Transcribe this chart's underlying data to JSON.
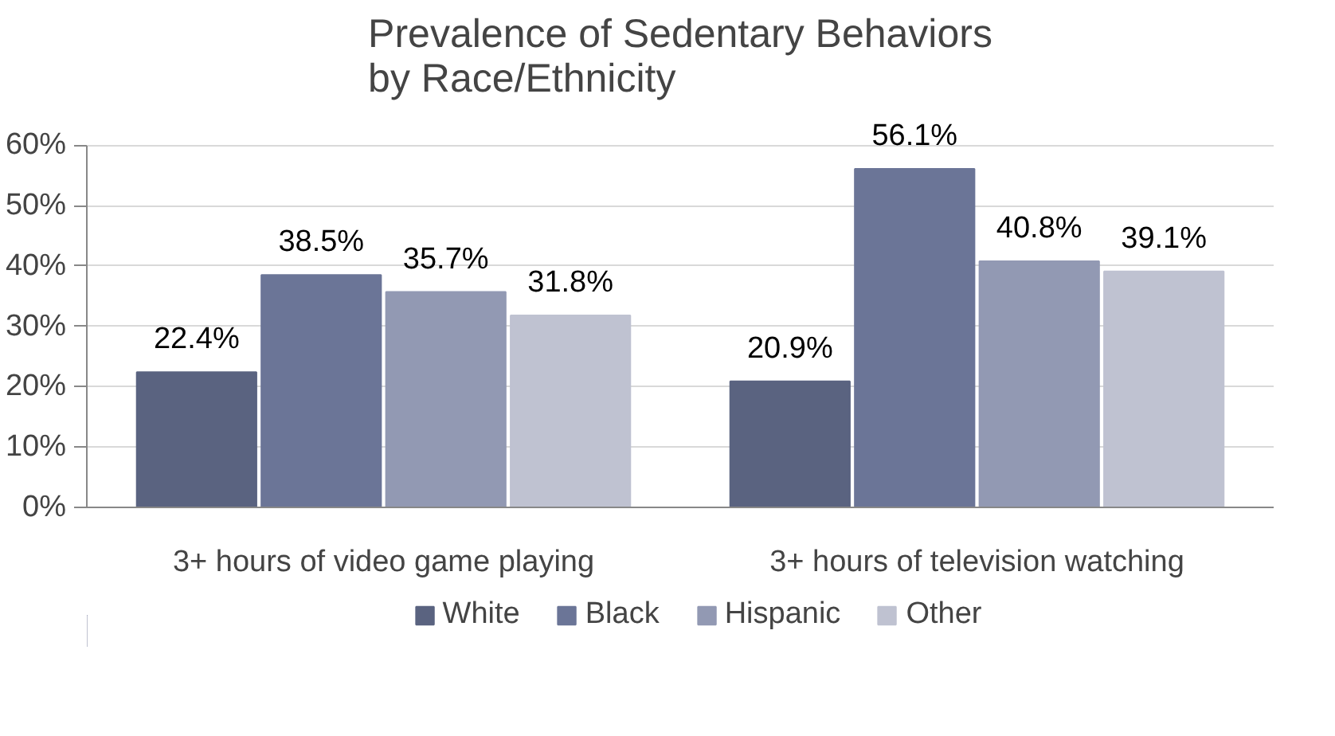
{
  "chart_data": {
    "type": "bar",
    "title": "Prevalence of Sedentary Behaviors\nby Race/Ethnicity",
    "categories": [
      "3+ hours of video game playing",
      "3+ hours of television watching"
    ],
    "series": [
      {
        "name": "White",
        "color": "#5a6380",
        "values": [
          22.4,
          20.9
        ],
        "value_labels": [
          "22.4%",
          "20.9%"
        ]
      },
      {
        "name": "Black",
        "color": "#6b7597",
        "values": [
          38.5,
          56.1
        ],
        "value_labels": [
          "38.5%",
          "56.1%"
        ]
      },
      {
        "name": "Hispanic",
        "color": "#9299b3",
        "values": [
          35.7,
          40.8
        ],
        "value_labels": [
          "35.7%",
          "40.8%"
        ]
      },
      {
        "name": "Other",
        "color": "#bfc2d1",
        "values": [
          31.8,
          39.1
        ],
        "value_labels": [
          "31.8%",
          "39.1%"
        ]
      }
    ],
    "ylim": [
      0,
      60
    ],
    "yticks": [
      {
        "value": 0,
        "label": "0%"
      },
      {
        "value": 10,
        "label": "10%"
      },
      {
        "value": 20,
        "label": "20%"
      },
      {
        "value": 30,
        "label": "30%"
      },
      {
        "value": 40,
        "label": "40%"
      },
      {
        "value": 50,
        "label": "50%"
      },
      {
        "value": 60,
        "label": "60%"
      }
    ],
    "grid": "y",
    "legend": "bottom"
  }
}
